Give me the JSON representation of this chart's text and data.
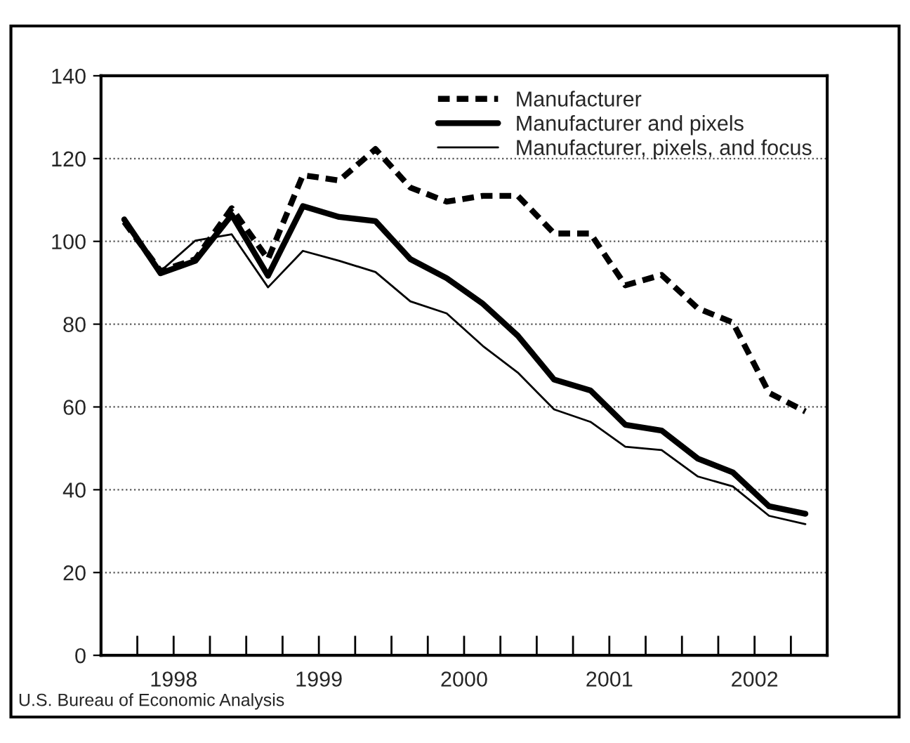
{
  "chart_data": {
    "type": "line",
    "x": [
      1998.16,
      1998.41,
      1998.65,
      1998.9,
      1999.15,
      1999.39,
      1999.64,
      1999.89,
      2000.13,
      2000.38,
      2000.63,
      2000.87,
      2001.12,
      2001.37,
      2001.61,
      2001.86,
      2002.11,
      2002.35,
      2002.6,
      2002.85
    ],
    "series": [
      {
        "name": "Manufacturer",
        "color": "#000000",
        "line_style": "dashed",
        "values": [
          104.7,
          92.8,
          95.7,
          108,
          95.7,
          116,
          114.7,
          122.3,
          113,
          109.6,
          111,
          111,
          101.9,
          101.9,
          89.4,
          91.9,
          83.8,
          80.4,
          63.4,
          58.9
        ]
      },
      {
        "name": "Manufacturer and pixels",
        "color": "#000000",
        "line_style": "solid",
        "values": [
          105.3,
          92.3,
          95.3,
          106.4,
          91.7,
          108.5,
          105.9,
          104.9,
          95.7,
          91.1,
          84.9,
          77.2,
          66.6,
          64,
          55.7,
          54.3,
          47.5,
          44.2,
          36,
          34.2
        ]
      },
      {
        "name": "Manufacturer, pixels, and focus",
        "color": "#000000",
        "line_style": "solid",
        "values": [
          104.2,
          92.8,
          100.2,
          101.7,
          88.9,
          97.7,
          95.3,
          92.6,
          85.5,
          82.6,
          74.7,
          68.3,
          59.4,
          56.4,
          50.4,
          49.6,
          43.2,
          40.8,
          33.7,
          31.7
        ]
      }
    ],
    "xlim": [
      1998,
      2003
    ],
    "xticks": [
      {
        "value": 1998.25,
        "label": null
      },
      {
        "value": 1998.5,
        "label": "1998"
      },
      {
        "value": 1998.75,
        "label": null
      },
      {
        "value": 1999,
        "label": null
      },
      {
        "value": 1999.25,
        "label": null
      },
      {
        "value": 1999.5,
        "label": "1999"
      },
      {
        "value": 1999.75,
        "label": null
      },
      {
        "value": 2000,
        "label": null
      },
      {
        "value": 2000.25,
        "label": null
      },
      {
        "value": 2000.5,
        "label": "2000"
      },
      {
        "value": 2000.75,
        "label": null
      },
      {
        "value": 2001,
        "label": null
      },
      {
        "value": 2001.25,
        "label": null
      },
      {
        "value": 2001.5,
        "label": "2001"
      },
      {
        "value": 2001.75,
        "label": null
      },
      {
        "value": 2002,
        "label": null
      },
      {
        "value": 2002.25,
        "label": null
      },
      {
        "value": 2002.5,
        "label": "2002"
      },
      {
        "value": 2002.75,
        "label": null
      }
    ],
    "ylim": [
      0,
      140
    ],
    "yticks": [
      0,
      20,
      40,
      60,
      80,
      100,
      120,
      140
    ],
    "grid": "y",
    "legend": "top right",
    "marker": "none",
    "annotations": [
      "U.S. Bureau of Economic Analysis"
    ]
  }
}
